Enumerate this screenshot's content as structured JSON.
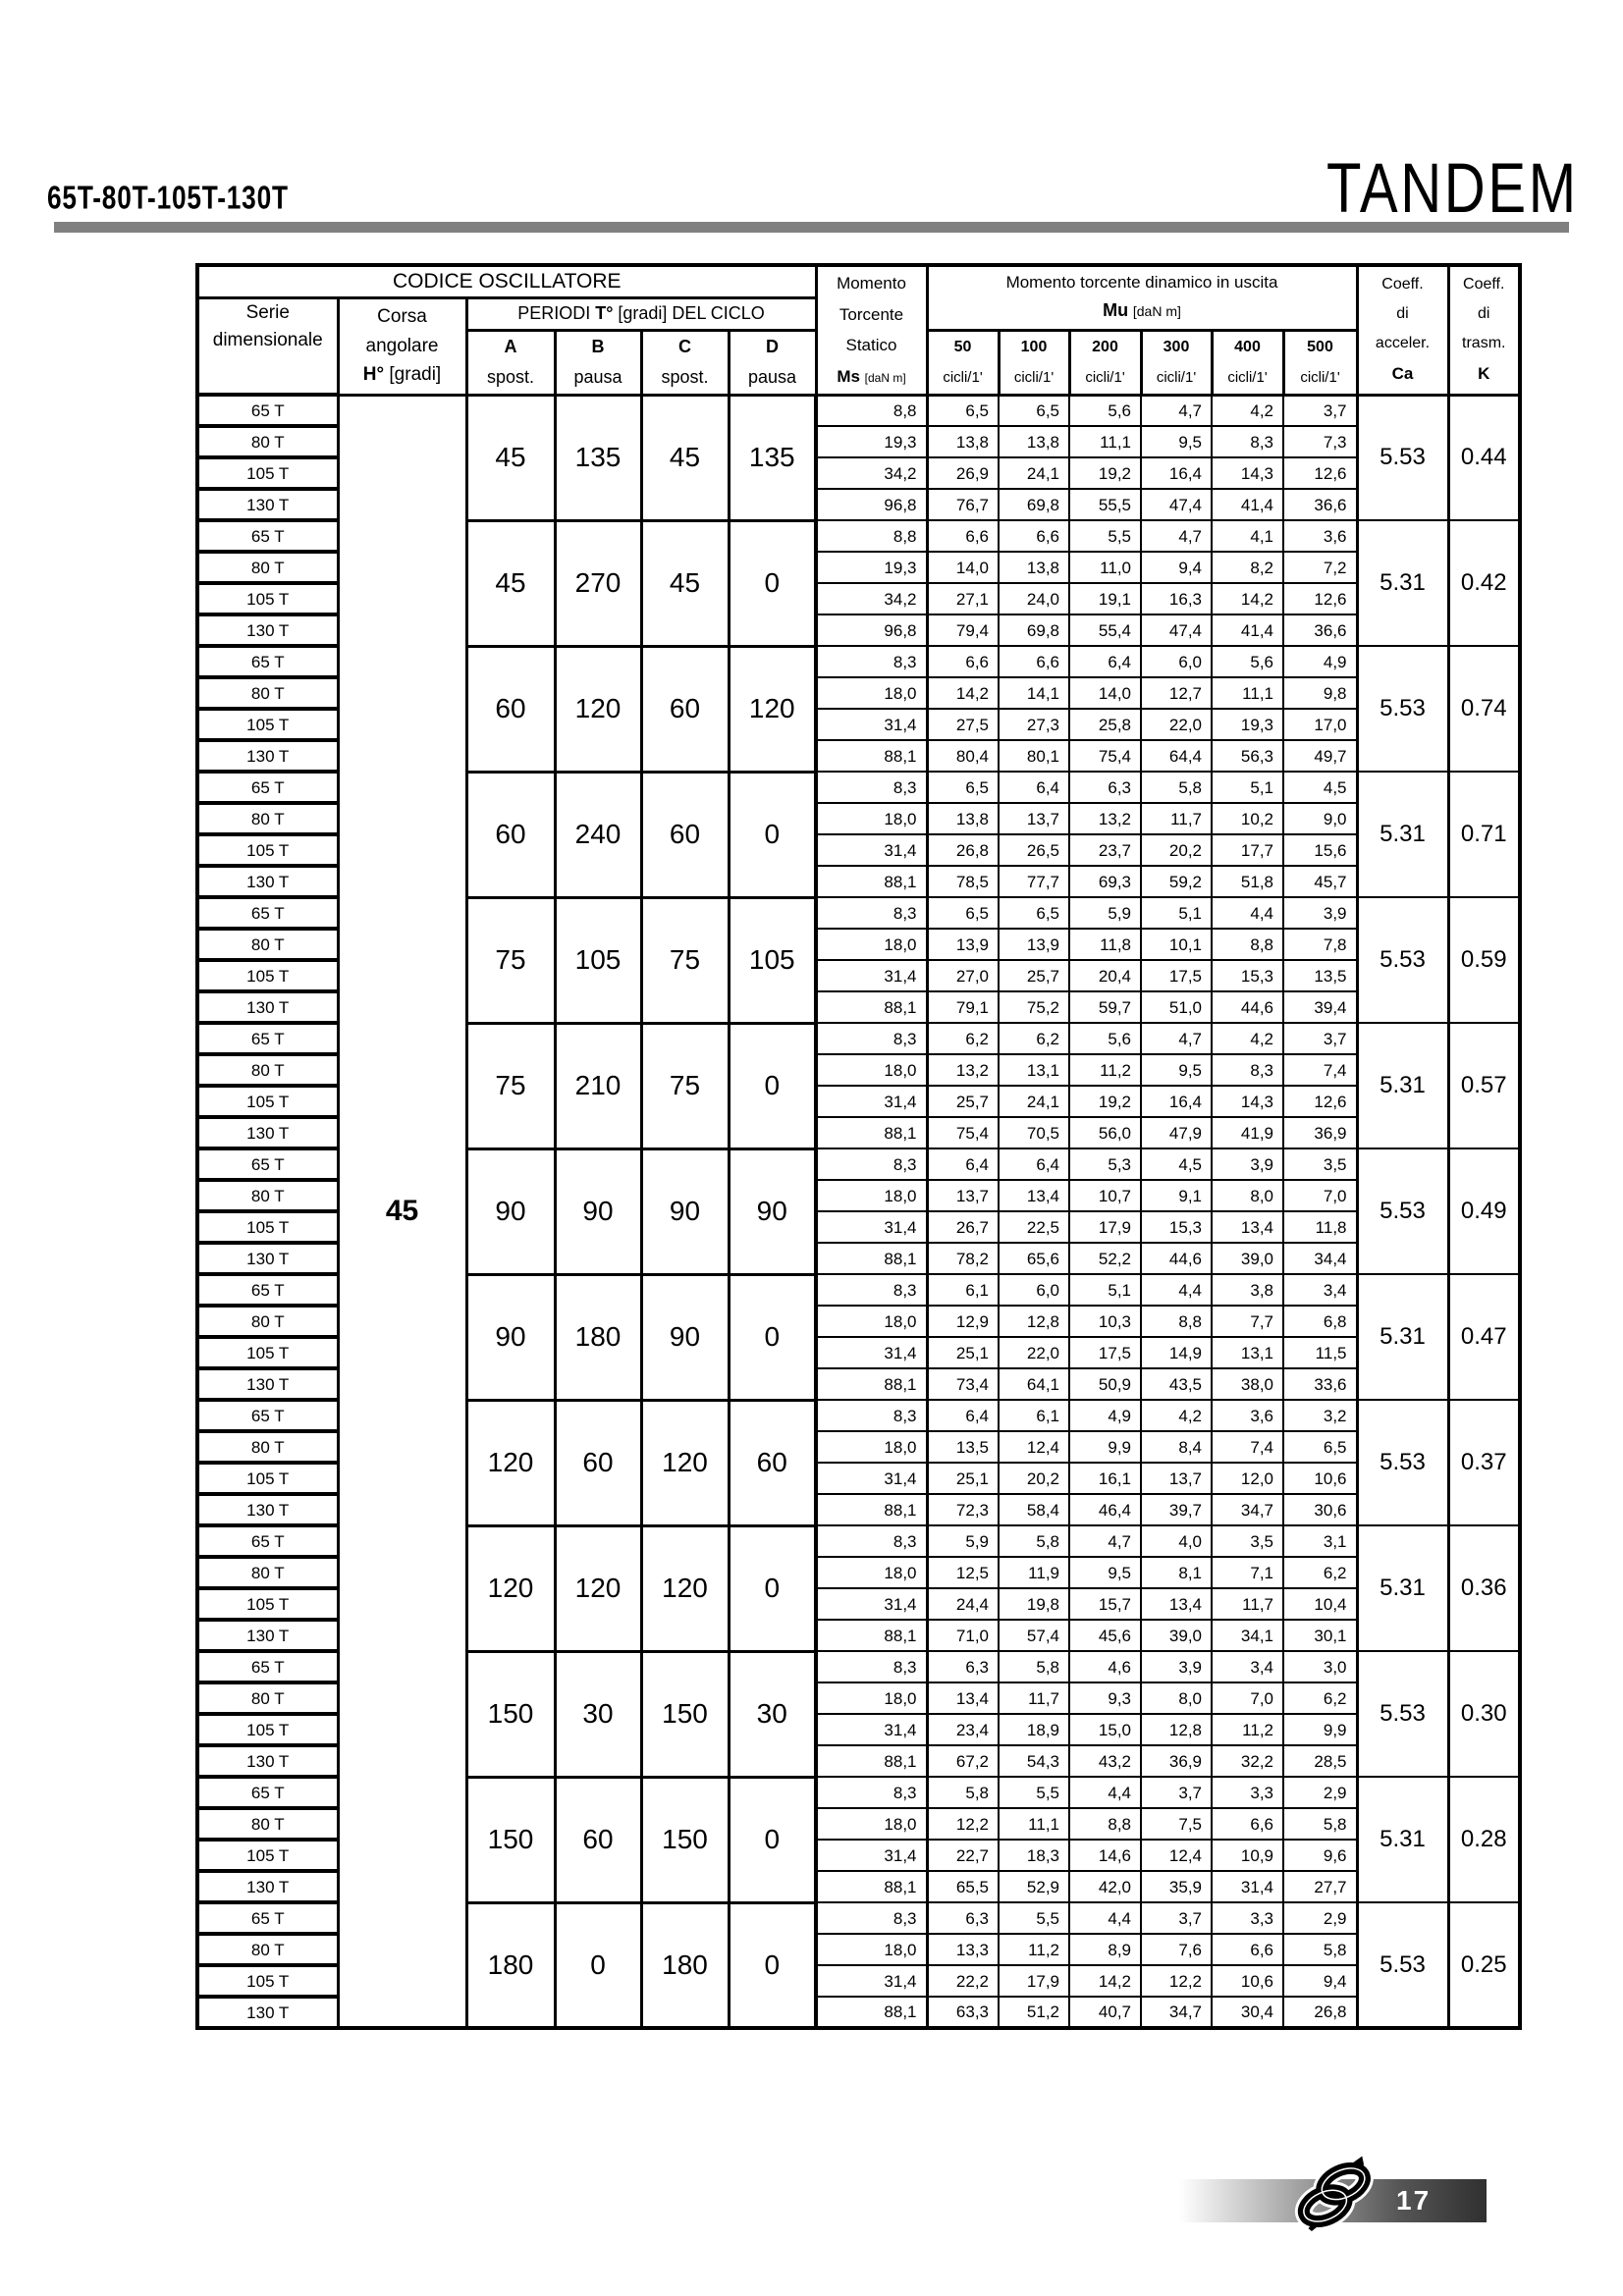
{
  "page": {
    "series_title": "65T-80T-105T-130T",
    "brand": "TANDEM",
    "page_number": "17"
  },
  "colors": {
    "title_rule_gray": "#808080",
    "footer_gradient_dark": "#303030",
    "text": "#000000"
  },
  "table": {
    "header": {
      "codice": "CODICE OSCILLATORE",
      "serie_line1": "Serie",
      "serie_line2": "dimensionale",
      "corsa_line1": "Corsa",
      "corsa_line2": "angolare",
      "corsa_bold": "H°",
      "corsa_unit": "[gradi]",
      "periodi_pre": "PERIODI ",
      "periodi_bold": "T°",
      "periodi_post": " [gradi] DEL CICLO",
      "period_cols": [
        {
          "letter": "A",
          "type": "spost."
        },
        {
          "letter": "B",
          "type": "pausa"
        },
        {
          "letter": "C",
          "type": "spost."
        },
        {
          "letter": "D",
          "type": "pausa"
        }
      ],
      "ms_line1": "Momento",
      "ms_line2": "Torcente",
      "ms_line3": "Statico",
      "ms_bold": "Ms",
      "ms_unit": "[daN m]",
      "mu_title": "Momento torcente dinamico in uscita",
      "mu_bold": "Mu",
      "mu_unit": "[daN m]",
      "cycles": [
        "50",
        "100",
        "200",
        "300",
        "400",
        "500"
      ],
      "cycles_unit": "cicli/1'",
      "ca_line1": "Coeff.",
      "ca_line2": "di",
      "ca_line3": "acceler.",
      "ca_bold": "Ca",
      "k_line1": "Coeff.",
      "k_line2": "di",
      "k_line3": "trasm.",
      "k_bold": "K"
    },
    "corsa_value": "45",
    "series_labels": [
      "65 T",
      "80 T",
      "105 T",
      "130 T"
    ],
    "groups": [
      {
        "A": "45",
        "B": "135",
        "C": "45",
        "D": "135",
        "Ca": "5.53",
        "K": "0.44",
        "rows": [
          {
            "ms": "8,8",
            "mu": [
              "6,5",
              "6,5",
              "5,6",
              "4,7",
              "4,2",
              "3,7"
            ]
          },
          {
            "ms": "19,3",
            "mu": [
              "13,8",
              "13,8",
              "11,1",
              "9,5",
              "8,3",
              "7,3"
            ]
          },
          {
            "ms": "34,2",
            "mu": [
              "26,9",
              "24,1",
              "19,2",
              "16,4",
              "14,3",
              "12,6"
            ]
          },
          {
            "ms": "96,8",
            "mu": [
              "76,7",
              "69,8",
              "55,5",
              "47,4",
              "41,4",
              "36,6"
            ]
          }
        ]
      },
      {
        "A": "45",
        "B": "270",
        "C": "45",
        "D": "0",
        "Ca": "5.31",
        "K": "0.42",
        "rows": [
          {
            "ms": "8,8",
            "mu": [
              "6,6",
              "6,6",
              "5,5",
              "4,7",
              "4,1",
              "3,6"
            ]
          },
          {
            "ms": "19,3",
            "mu": [
              "14,0",
              "13,8",
              "11,0",
              "9,4",
              "8,2",
              "7,2"
            ]
          },
          {
            "ms": "34,2",
            "mu": [
              "27,1",
              "24,0",
              "19,1",
              "16,3",
              "14,2",
              "12,6"
            ]
          },
          {
            "ms": "96,8",
            "mu": [
              "79,4",
              "69,8",
              "55,4",
              "47,4",
              "41,4",
              "36,6"
            ]
          }
        ]
      },
      {
        "A": "60",
        "B": "120",
        "C": "60",
        "D": "120",
        "Ca": "5.53",
        "K": "0.74",
        "rows": [
          {
            "ms": "8,3",
            "mu": [
              "6,6",
              "6,6",
              "6,4",
              "6,0",
              "5,6",
              "4,9"
            ]
          },
          {
            "ms": "18,0",
            "mu": [
              "14,2",
              "14,1",
              "14,0",
              "12,7",
              "11,1",
              "9,8"
            ]
          },
          {
            "ms": "31,4",
            "mu": [
              "27,5",
              "27,3",
              "25,8",
              "22,0",
              "19,3",
              "17,0"
            ]
          },
          {
            "ms": "88,1",
            "mu": [
              "80,4",
              "80,1",
              "75,4",
              "64,4",
              "56,3",
              "49,7"
            ]
          }
        ]
      },
      {
        "A": "60",
        "B": "240",
        "C": "60",
        "D": "0",
        "Ca": "5.31",
        "K": "0.71",
        "rows": [
          {
            "ms": "8,3",
            "mu": [
              "6,5",
              "6,4",
              "6,3",
              "5,8",
              "5,1",
              "4,5"
            ]
          },
          {
            "ms": "18,0",
            "mu": [
              "13,8",
              "13,7",
              "13,2",
              "11,7",
              "10,2",
              "9,0"
            ]
          },
          {
            "ms": "31,4",
            "mu": [
              "26,8",
              "26,5",
              "23,7",
              "20,2",
              "17,7",
              "15,6"
            ]
          },
          {
            "ms": "88,1",
            "mu": [
              "78,5",
              "77,7",
              "69,3",
              "59,2",
              "51,8",
              "45,7"
            ]
          }
        ]
      },
      {
        "A": "75",
        "B": "105",
        "C": "75",
        "D": "105",
        "Ca": "5.53",
        "K": "0.59",
        "rows": [
          {
            "ms": "8,3",
            "mu": [
              "6,5",
              "6,5",
              "5,9",
              "5,1",
              "4,4",
              "3,9"
            ]
          },
          {
            "ms": "18,0",
            "mu": [
              "13,9",
              "13,9",
              "11,8",
              "10,1",
              "8,8",
              "7,8"
            ]
          },
          {
            "ms": "31,4",
            "mu": [
              "27,0",
              "25,7",
              "20,4",
              "17,5",
              "15,3",
              "13,5"
            ]
          },
          {
            "ms": "88,1",
            "mu": [
              "79,1",
              "75,2",
              "59,7",
              "51,0",
              "44,6",
              "39,4"
            ]
          }
        ]
      },
      {
        "A": "75",
        "B": "210",
        "C": "75",
        "D": "0",
        "Ca": "5.31",
        "K": "0.57",
        "rows": [
          {
            "ms": "8,3",
            "mu": [
              "6,2",
              "6,2",
              "5,6",
              "4,7",
              "4,2",
              "3,7"
            ]
          },
          {
            "ms": "18,0",
            "mu": [
              "13,2",
              "13,1",
              "11,2",
              "9,5",
              "8,3",
              "7,4"
            ]
          },
          {
            "ms": "31,4",
            "mu": [
              "25,7",
              "24,1",
              "19,2",
              "16,4",
              "14,3",
              "12,6"
            ]
          },
          {
            "ms": "88,1",
            "mu": [
              "75,4",
              "70,5",
              "56,0",
              "47,9",
              "41,9",
              "36,9"
            ]
          }
        ]
      },
      {
        "A": "90",
        "B": "90",
        "C": "90",
        "D": "90",
        "Ca": "5.53",
        "K": "0.49",
        "rows": [
          {
            "ms": "8,3",
            "mu": [
              "6,4",
              "6,4",
              "5,3",
              "4,5",
              "3,9",
              "3,5"
            ]
          },
          {
            "ms": "18,0",
            "mu": [
              "13,7",
              "13,4",
              "10,7",
              "9,1",
              "8,0",
              "7,0"
            ]
          },
          {
            "ms": "31,4",
            "mu": [
              "26,7",
              "22,5",
              "17,9",
              "15,3",
              "13,4",
              "11,8"
            ]
          },
          {
            "ms": "88,1",
            "mu": [
              "78,2",
              "65,6",
              "52,2",
              "44,6",
              "39,0",
              "34,4"
            ]
          }
        ]
      },
      {
        "A": "90",
        "B": "180",
        "C": "90",
        "D": "0",
        "Ca": "5.31",
        "K": "0.47",
        "rows": [
          {
            "ms": "8,3",
            "mu": [
              "6,1",
              "6,0",
              "5,1",
              "4,4",
              "3,8",
              "3,4"
            ]
          },
          {
            "ms": "18,0",
            "mu": [
              "12,9",
              "12,8",
              "10,3",
              "8,8",
              "7,7",
              "6,8"
            ]
          },
          {
            "ms": "31,4",
            "mu": [
              "25,1",
              "22,0",
              "17,5",
              "14,9",
              "13,1",
              "11,5"
            ]
          },
          {
            "ms": "88,1",
            "mu": [
              "73,4",
              "64,1",
              "50,9",
              "43,5",
              "38,0",
              "33,6"
            ]
          }
        ]
      },
      {
        "A": "120",
        "B": "60",
        "C": "120",
        "D": "60",
        "Ca": "5.53",
        "K": "0.37",
        "rows": [
          {
            "ms": "8,3",
            "mu": [
              "6,4",
              "6,1",
              "4,9",
              "4,2",
              "3,6",
              "3,2"
            ]
          },
          {
            "ms": "18,0",
            "mu": [
              "13,5",
              "12,4",
              "9,9",
              "8,4",
              "7,4",
              "6,5"
            ]
          },
          {
            "ms": "31,4",
            "mu": [
              "25,1",
              "20,2",
              "16,1",
              "13,7",
              "12,0",
              "10,6"
            ]
          },
          {
            "ms": "88,1",
            "mu": [
              "72,3",
              "58,4",
              "46,4",
              "39,7",
              "34,7",
              "30,6"
            ]
          }
        ]
      },
      {
        "A": "120",
        "B": "120",
        "C": "120",
        "D": "0",
        "Ca": "5.31",
        "K": "0.36",
        "rows": [
          {
            "ms": "8,3",
            "mu": [
              "5,9",
              "5,8",
              "4,7",
              "4,0",
              "3,5",
              "3,1"
            ]
          },
          {
            "ms": "18,0",
            "mu": [
              "12,5",
              "11,9",
              "9,5",
              "8,1",
              "7,1",
              "6,2"
            ]
          },
          {
            "ms": "31,4",
            "mu": [
              "24,4",
              "19,8",
              "15,7",
              "13,4",
              "11,7",
              "10,4"
            ]
          },
          {
            "ms": "88,1",
            "mu": [
              "71,0",
              "57,4",
              "45,6",
              "39,0",
              "34,1",
              "30,1"
            ]
          }
        ]
      },
      {
        "A": "150",
        "B": "30",
        "C": "150",
        "D": "30",
        "Ca": "5.53",
        "K": "0.30",
        "rows": [
          {
            "ms": "8,3",
            "mu": [
              "6,3",
              "5,8",
              "4,6",
              "3,9",
              "3,4",
              "3,0"
            ]
          },
          {
            "ms": "18,0",
            "mu": [
              "13,4",
              "11,7",
              "9,3",
              "8,0",
              "7,0",
              "6,2"
            ]
          },
          {
            "ms": "31,4",
            "mu": [
              "23,4",
              "18,9",
              "15,0",
              "12,8",
              "11,2",
              "9,9"
            ]
          },
          {
            "ms": "88,1",
            "mu": [
              "67,2",
              "54,3",
              "43,2",
              "36,9",
              "32,2",
              "28,5"
            ]
          }
        ]
      },
      {
        "A": "150",
        "B": "60",
        "C": "150",
        "D": "0",
        "Ca": "5.31",
        "K": "0.28",
        "rows": [
          {
            "ms": "8,3",
            "mu": [
              "5,8",
              "5,5",
              "4,4",
              "3,7",
              "3,3",
              "2,9"
            ]
          },
          {
            "ms": "18,0",
            "mu": [
              "12,2",
              "11,1",
              "8,8",
              "7,5",
              "6,6",
              "5,8"
            ]
          },
          {
            "ms": "31,4",
            "mu": [
              "22,7",
              "18,3",
              "14,6",
              "12,4",
              "10,9",
              "9,6"
            ]
          },
          {
            "ms": "88,1",
            "mu": [
              "65,5",
              "52,9",
              "42,0",
              "35,9",
              "31,4",
              "27,7"
            ]
          }
        ]
      },
      {
        "A": "180",
        "B": "0",
        "C": "180",
        "D": "0",
        "Ca": "5.53",
        "K": "0.25",
        "rows": [
          {
            "ms": "8,3",
            "mu": [
              "6,3",
              "5,5",
              "4,4",
              "3,7",
              "3,3",
              "2,9"
            ]
          },
          {
            "ms": "18,0",
            "mu": [
              "13,3",
              "11,2",
              "8,9",
              "7,6",
              "6,6",
              "5,8"
            ]
          },
          {
            "ms": "31,4",
            "mu": [
              "22,2",
              "17,9",
              "14,2",
              "12,2",
              "10,6",
              "9,4"
            ]
          },
          {
            "ms": "88,1",
            "mu": [
              "63,3",
              "51,2",
              "40,7",
              "34,7",
              "30,4",
              "26,8"
            ]
          }
        ]
      }
    ]
  }
}
